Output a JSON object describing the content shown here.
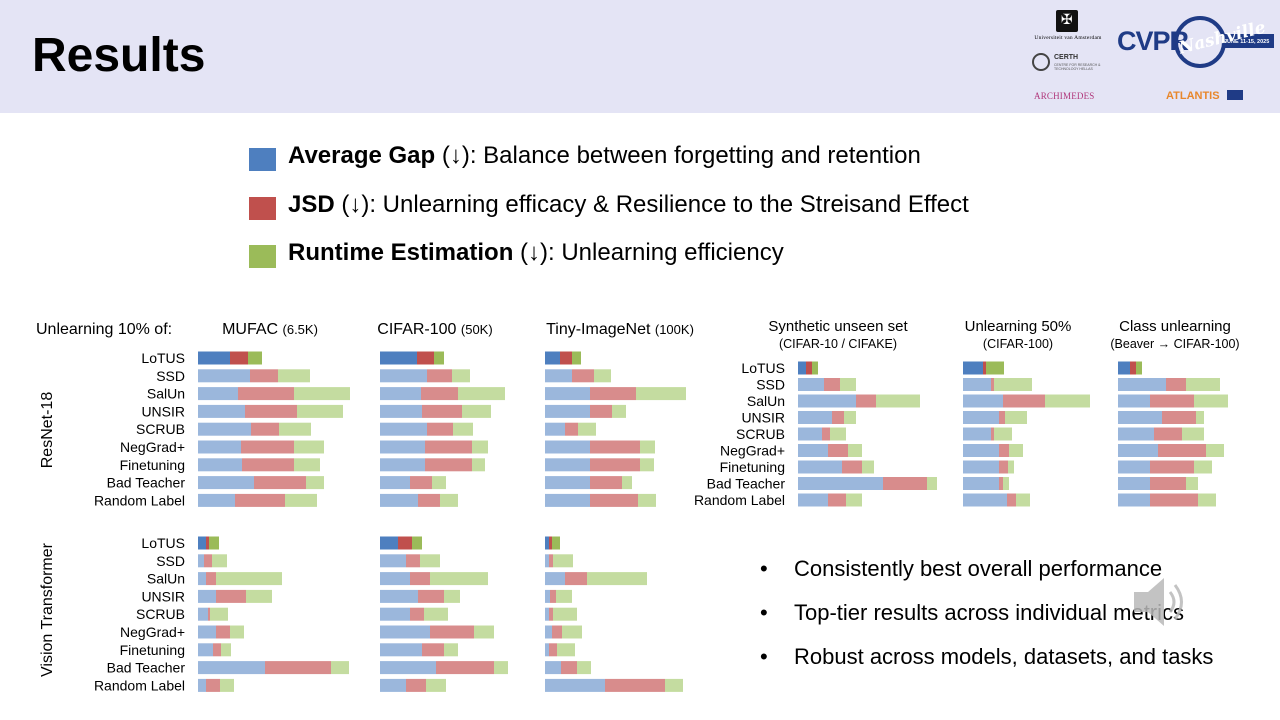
{
  "slide": {
    "title": "Results",
    "logos": {
      "uva": "Universiteit van Amsterdam",
      "certh": "CERTH",
      "certh_sub": "CENTRE FOR RESEARCH & TECHNOLOGY HELLAS",
      "archimedes": "ARCHIMEDES",
      "cvpr": "CVPR",
      "cvpr_city": "Nashville",
      "cvpr_date": "JUNE 11-15, 2025",
      "atlantis": "ATLANTIS"
    },
    "legend": [
      {
        "bold": "Average Gap",
        "rest": " (↓): Balance between forgetting and retention",
        "color": "#4e7fbf"
      },
      {
        "bold": "JSD",
        "rest": " (↓): Unlearning efficacy & Resilience to the Streisand Effect",
        "color": "#c0504d"
      },
      {
        "bold": "Runtime Estimation",
        "rest": " (↓): Unlearning efficiency",
        "color": "#9bbb59"
      }
    ],
    "row_intro": "Unlearning 10% of:",
    "bullets": [
      "Consistently best overall performance",
      "Top-tier results across individual metrics",
      "Robust across models, datasets, and tasks"
    ]
  },
  "chart_data": [
    {
      "type": "bar",
      "stacked": true,
      "orientation": "horizontal",
      "model": "ResNet-18",
      "title": "MUFAC",
      "title_note": "(6.5K)",
      "categories": [
        "LoTUS",
        "SSD",
        "SalUn",
        "UNSIR",
        "SCRUB",
        "NegGrad+",
        "Finetuning",
        "Bad Teacher",
        "Random Label"
      ],
      "series": [
        {
          "name": "Average Gap",
          "values": [
            32,
            52,
            40,
            47,
            53,
            43,
            44,
            56,
            37
          ]
        },
        {
          "name": "JSD",
          "values": [
            18,
            28,
            56,
            52,
            28,
            53,
            52,
            52,
            50
          ]
        },
        {
          "name": "Runtime Estimation",
          "values": [
            14,
            32,
            56,
            46,
            32,
            30,
            26,
            18,
            32
          ]
        }
      ]
    },
    {
      "type": "bar",
      "stacked": true,
      "orientation": "horizontal",
      "model": "ResNet-18",
      "title": "CIFAR-100",
      "title_note": "(50K)",
      "categories": [
        "LoTUS",
        "SSD",
        "SalUn",
        "UNSIR",
        "SCRUB",
        "NegGrad+",
        "Finetuning",
        "Bad Teacher",
        "Random Label"
      ],
      "series": [
        {
          "name": "Average Gap",
          "values": [
            37,
            47,
            41,
            42,
            47,
            45,
            45,
            30,
            38
          ]
        },
        {
          "name": "JSD",
          "values": [
            17,
            25,
            37,
            40,
            26,
            47,
            47,
            22,
            22
          ]
        },
        {
          "name": "Runtime Estimation",
          "values": [
            10,
            18,
            47,
            29,
            20,
            16,
            13,
            14,
            18
          ]
        }
      ]
    },
    {
      "type": "bar",
      "stacked": true,
      "orientation": "horizontal",
      "model": "ResNet-18",
      "title": "Tiny-ImageNet",
      "title_note": "(100K)",
      "categories": [
        "LoTUS",
        "SSD",
        "SalUn",
        "UNSIR",
        "SCRUB",
        "NegGrad+",
        "Finetuning",
        "Bad Teacher",
        "Random Label"
      ],
      "series": [
        {
          "name": "Average Gap",
          "values": [
            15,
            27,
            45,
            45,
            20,
            45,
            45,
            45,
            45
          ]
        },
        {
          "name": "JSD",
          "values": [
            12,
            22,
            46,
            22,
            13,
            50,
            50,
            32,
            48
          ]
        },
        {
          "name": "Runtime Estimation",
          "values": [
            9,
            17,
            50,
            14,
            18,
            15,
            14,
            10,
            18
          ]
        }
      ]
    },
    {
      "type": "bar",
      "stacked": true,
      "orientation": "horizontal",
      "model": "ResNet-18",
      "title": "Synthetic unseen set",
      "title_note": "(CIFAR-10 / CIFAKE)",
      "categories": [
        "LoTUS",
        "SSD",
        "SalUn",
        "UNSIR",
        "SCRUB",
        "NegGrad+",
        "Finetuning",
        "Bad Teacher",
        "Random Label"
      ],
      "series": [
        {
          "name": "Average Gap",
          "values": [
            8,
            26,
            58,
            34,
            24,
            30,
            44,
            85,
            30
          ]
        },
        {
          "name": "JSD",
          "values": [
            6,
            16,
            20,
            12,
            8,
            20,
            20,
            44,
            18
          ]
        },
        {
          "name": "Runtime Estimation",
          "values": [
            6,
            16,
            44,
            12,
            16,
            14,
            12,
            10,
            16
          ]
        }
      ]
    },
    {
      "type": "bar",
      "stacked": true,
      "orientation": "horizontal",
      "model": "ResNet-18",
      "title": "Unlearning 50%",
      "title_note": "(CIFAR-100)",
      "categories": [
        "LoTUS",
        "SSD",
        "SalUn",
        "UNSIR",
        "SCRUB",
        "NegGrad+",
        "Finetuning",
        "Bad Teacher",
        "Random Label"
      ],
      "series": [
        {
          "name": "Average Gap",
          "values": [
            20,
            28,
            40,
            36,
            28,
            36,
            36,
            36,
            44
          ]
        },
        {
          "name": "JSD",
          "values": [
            3,
            3,
            42,
            6,
            3,
            10,
            9,
            4,
            9
          ]
        },
        {
          "name": "Runtime Estimation",
          "values": [
            18,
            38,
            45,
            22,
            18,
            14,
            6,
            6,
            14
          ]
        }
      ]
    },
    {
      "type": "bar",
      "stacked": true,
      "orientation": "horizontal",
      "model": "ResNet-18",
      "title": "Class unlearning",
      "title_note": "(Beaver → CIFAR-100)",
      "categories": [
        "LoTUS",
        "SSD",
        "SalUn",
        "UNSIR",
        "SCRUB",
        "NegGrad+",
        "Finetuning",
        "Bad Teacher",
        "Random Label"
      ],
      "series": [
        {
          "name": "Average Gap",
          "values": [
            12,
            48,
            32,
            44,
            36,
            40,
            32,
            32,
            32
          ]
        },
        {
          "name": "JSD",
          "values": [
            6,
            20,
            44,
            34,
            28,
            48,
            44,
            36,
            48
          ]
        },
        {
          "name": "Runtime Estimation",
          "values": [
            6,
            34,
            34,
            8,
            22,
            18,
            18,
            12,
            18
          ]
        }
      ]
    },
    {
      "type": "bar",
      "stacked": true,
      "orientation": "horizontal",
      "model": "Vision Transformer",
      "title": "MUFAC",
      "categories": [
        "LoTUS",
        "SSD",
        "SalUn",
        "UNSIR",
        "SCRUB",
        "NegGrad+",
        "Finetuning",
        "Bad Teacher",
        "Random Label"
      ],
      "series": [
        {
          "name": "Average Gap",
          "values": [
            8,
            6,
            8,
            18,
            10,
            18,
            15,
            67,
            8
          ]
        },
        {
          "name": "JSD",
          "values": [
            3,
            8,
            10,
            30,
            2,
            14,
            8,
            66,
            14
          ]
        },
        {
          "name": "Runtime Estimation",
          "values": [
            10,
            15,
            66,
            26,
            18,
            14,
            10,
            18,
            14
          ]
        }
      ]
    },
    {
      "type": "bar",
      "stacked": true,
      "orientation": "horizontal",
      "model": "Vision Transformer",
      "title": "CIFAR-100",
      "categories": [
        "LoTUS",
        "SSD",
        "SalUn",
        "UNSIR",
        "SCRUB",
        "NegGrad+",
        "Finetuning",
        "Bad Teacher",
        "Random Label"
      ],
      "series": [
        {
          "name": "Average Gap",
          "values": [
            18,
            26,
            30,
            38,
            30,
            50,
            42,
            56,
            26
          ]
        },
        {
          "name": "JSD",
          "values": [
            14,
            14,
            20,
            26,
            14,
            44,
            22,
            58,
            20
          ]
        },
        {
          "name": "Runtime Estimation",
          "values": [
            10,
            20,
            58,
            16,
            24,
            20,
            14,
            14,
            20
          ]
        }
      ]
    },
    {
      "type": "bar",
      "stacked": true,
      "orientation": "horizontal",
      "model": "Vision Transformer",
      "title": "Tiny-ImageNet",
      "categories": [
        "LoTUS",
        "SSD",
        "SalUn",
        "UNSIR",
        "SCRUB",
        "NegGrad+",
        "Finetuning",
        "Bad Teacher",
        "Random Label"
      ],
      "series": [
        {
          "name": "Average Gap",
          "values": [
            4,
            4,
            20,
            5,
            4,
            7,
            4,
            16,
            60
          ]
        },
        {
          "name": "JSD",
          "values": [
            3,
            4,
            22,
            6,
            4,
            10,
            8,
            16,
            60
          ]
        },
        {
          "name": "Runtime Estimation",
          "values": [
            8,
            20,
            60,
            16,
            24,
            20,
            18,
            14,
            18
          ]
        }
      ]
    }
  ]
}
